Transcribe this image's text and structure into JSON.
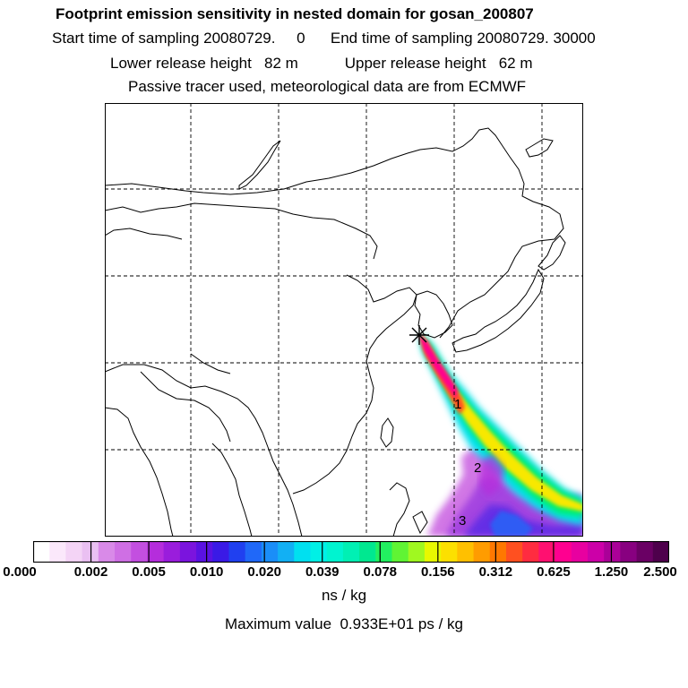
{
  "header": {
    "title": "Footprint emission sensitivity in nested domain for gosan_200807",
    "sampling": "Start time of sampling 20080729.     0      End time of sampling 20080729. 30000",
    "release": "Lower release height   82 m           Upper release height   62 m",
    "tracer": "Passive tracer used, meteorological data are from ECMWF"
  },
  "map": {
    "release_marker": "release-point-star",
    "trajectory_labels": [
      "1",
      "2",
      "3"
    ]
  },
  "colorbar": {
    "tick_labels": [
      "0.000",
      "0.002",
      "0.005",
      "0.010",
      "0.020",
      "0.039",
      "0.078",
      "0.156",
      "0.312",
      "0.625",
      "1.250",
      "2.500"
    ],
    "colors": [
      "#ffffff",
      "#fbe8fb",
      "#f4d4f6",
      "#eac0f2",
      "#d98ae8",
      "#cf6fe4",
      "#c34fe0",
      "#b52ddc",
      "#9a1ddc",
      "#7b14de",
      "#5a12e2",
      "#3a1ae6",
      "#2040f0",
      "#2068f8",
      "#1a8ef8",
      "#12b0f4",
      "#00e0f0",
      "#00f0e6",
      "#00f4d0",
      "#00f0b4",
      "#00e890",
      "#22f060",
      "#60f434",
      "#a0f820",
      "#e8f800",
      "#fce000",
      "#ffc000",
      "#ff9c00",
      "#ff7800",
      "#ff5020",
      "#ff2c40",
      "#ff1070",
      "#ff0090",
      "#e800a0",
      "#cc00a8",
      "#aa0098",
      "#880080",
      "#6a0064",
      "#4e004c"
    ],
    "units": "ns / kg",
    "max_value_text": "Maximum value  0.933E+01 ps / kg"
  }
}
